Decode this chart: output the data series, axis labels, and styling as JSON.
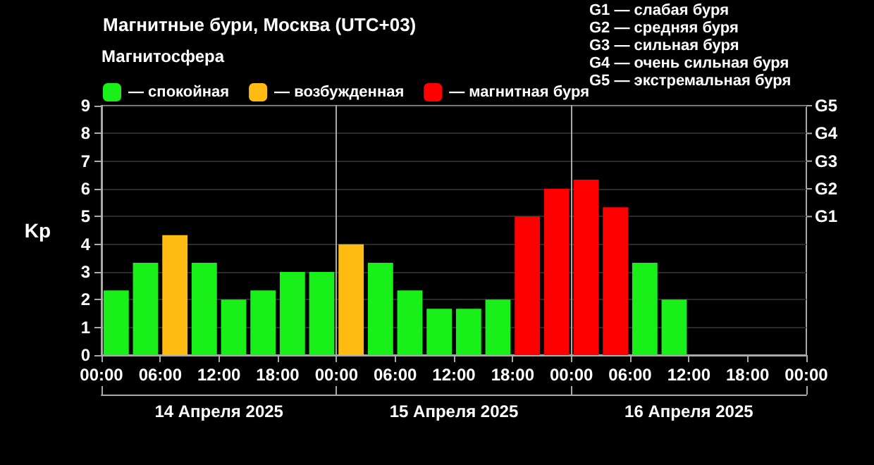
{
  "chart_data": {
    "type": "bar",
    "title": "Магнитные бури, Москва (UTC+03)",
    "legend_title": "Магнитосфера",
    "ylabel": "Kp",
    "annotations": [
      "G1 — слабая буря",
      "G2 — средняя буря",
      "G3 — сильная буря",
      "G4 — очень сильная буря",
      "G5 — экстремальная буря",
      "G1",
      "G2",
      "G3",
      "G4",
      "G5"
    ],
    "x": [
      "2025-04-14T01:30",
      "2025-04-14T04:30",
      "2025-04-14T07:30",
      "2025-04-14T10:30",
      "2025-04-14T13:30",
      "2025-04-14T16:30",
      "2025-04-14T19:30",
      "2025-04-14T22:30",
      "2025-04-15T01:30",
      "2025-04-15T04:30",
      "2025-04-15T07:30",
      "2025-04-15T10:30",
      "2025-04-15T13:30",
      "2025-04-15T16:30",
      "2025-04-15T19:30",
      "2025-04-15T22:30",
      "2025-04-16T01:30",
      "2025-04-16T04:30",
      "2025-04-16T07:30",
      "2025-04-16T10:30"
    ],
    "series": [
      {
        "name": "— спокойная",
        "color": "#19f019",
        "values": [
          2.33,
          3.33,
          null,
          3.33,
          2,
          2.33,
          3,
          3,
          null,
          3.33,
          2.33,
          1.67,
          1.67,
          2,
          null,
          null,
          null,
          null,
          3.33,
          2
        ]
      },
      {
        "name": "— возбужденная",
        "color": "#ffbb11",
        "values": [
          null,
          null,
          4.33,
          null,
          null,
          null,
          null,
          null,
          4,
          null,
          null,
          null,
          null,
          null,
          null,
          null,
          null,
          null,
          null,
          null
        ]
      },
      {
        "name": "— магнитная буря",
        "color": "#ff0000",
        "values": [
          null,
          null,
          null,
          null,
          null,
          null,
          null,
          null,
          null,
          null,
          null,
          null,
          null,
          null,
          5,
          6,
          6.33,
          5.33,
          null,
          null
        ]
      }
    ],
    "xlim": [
      "2025-04-14T00:00",
      "2025-04-17T00:00"
    ],
    "xticks": [
      {
        "value": "2025-04-14T00:00",
        "label": "00:00"
      },
      {
        "value": "2025-04-14T06:00",
        "label": "06:00"
      },
      {
        "value": "2025-04-14T12:00",
        "label": "12:00"
      },
      {
        "value": "2025-04-14T18:00",
        "label": "18:00"
      },
      {
        "value": "2025-04-15T00:00",
        "label": "00:00"
      },
      {
        "value": "2025-04-15T06:00",
        "label": "06:00"
      },
      {
        "value": "2025-04-15T12:00",
        "label": "12:00"
      },
      {
        "value": "2025-04-15T18:00",
        "label": "18:00"
      },
      {
        "value": "2025-04-16T00:00",
        "label": "00:00"
      },
      {
        "value": "2025-04-16T06:00",
        "label": "06:00"
      },
      {
        "value": "2025-04-16T12:00",
        "label": "12:00"
      },
      {
        "value": "2025-04-16T18:00",
        "label": "18:00"
      },
      {
        "value": "2025-04-17T00:00",
        "label": "00:00"
      }
    ],
    "x2lim": [
      "2025-04-14T00:00",
      "2025-04-17T00:00"
    ],
    "x2ticks": [
      {
        "value": "2025-04-14T00:00",
        "label": null
      },
      {
        "value": "2025-04-14T12:00",
        "label": "14 Апреля 2025"
      },
      {
        "value": "2025-04-15T00:00",
        "label": null
      },
      {
        "value": "2025-04-15T12:00",
        "label": "15 Апреля 2025"
      },
      {
        "value": "2025-04-16T00:00",
        "label": null
      },
      {
        "value": "2025-04-16T12:00",
        "label": "16 Апреля 2025"
      },
      {
        "value": "2025-04-17T00:00",
        "label": null
      }
    ],
    "ylim": [
      0,
      9
    ],
    "yticks": [
      0,
      1,
      2,
      3,
      4,
      5,
      6,
      7,
      8,
      9
    ],
    "ref_lines": [
      {
        "axis": "x",
        "value": "2025-04-15T00:00",
        "color": "#aaaaaa"
      },
      {
        "axis": "x",
        "value": "2025-04-16T00:00",
        "color": "#aaaaaa"
      }
    ],
    "grid": "y",
    "legend": "top left"
  }
}
